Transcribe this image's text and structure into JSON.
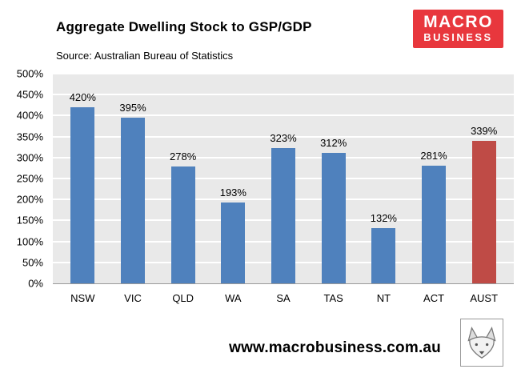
{
  "header": {
    "title": "Aggregate Dwelling Stock to GSP/GDP",
    "source": "Source: Australian Bureau of Statistics"
  },
  "logo": {
    "line1": "MACRO",
    "line2": "BUSINESS",
    "bg_color": "#e8373d",
    "text_color": "#ffffff"
  },
  "footer": {
    "url": "www.macrobusiness.com.au"
  },
  "chart_data": {
    "type": "bar",
    "title": "Aggregate Dwelling Stock to GSP/GDP",
    "categories": [
      "NSW",
      "VIC",
      "QLD",
      "WA",
      "SA",
      "TAS",
      "NT",
      "ACT",
      "AUST"
    ],
    "values": [
      420,
      395,
      278,
      193,
      323,
      312,
      132,
      281,
      339
    ],
    "value_labels": [
      "420%",
      "395%",
      "278%",
      "193%",
      "323%",
      "312%",
      "132%",
      "281%",
      "339%"
    ],
    "ylim": [
      0,
      500
    ],
    "ytick_step": 50,
    "ytick_labels": [
      "0%",
      "50%",
      "100%",
      "150%",
      "200%",
      "250%",
      "300%",
      "350%",
      "400%",
      "450%",
      "500%"
    ],
    "grid": true,
    "legend": "none",
    "bar_color": "#4f81bd",
    "highlight_color": "#bf4b46",
    "highlight_category": "AUST",
    "plot_bg": "#e9e9e9"
  }
}
